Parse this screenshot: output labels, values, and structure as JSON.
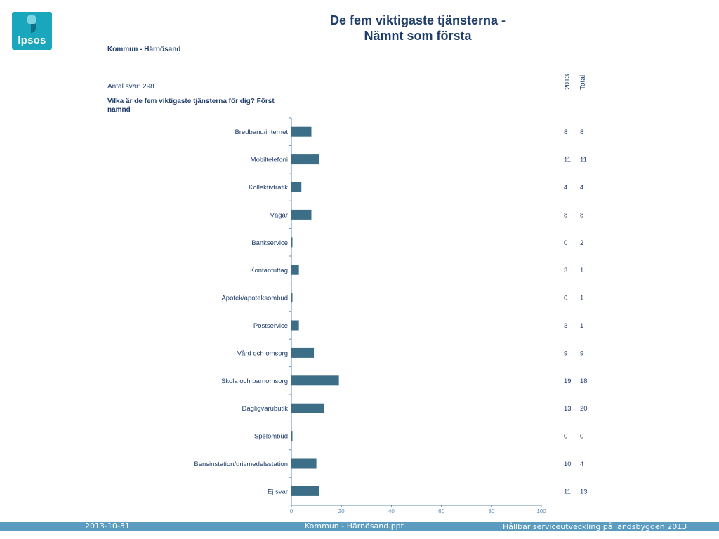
{
  "logo": {
    "text": "Ipsos"
  },
  "title": {
    "line1": "De fem viktigaste tjänsterna -",
    "line2": "Nämnt som första"
  },
  "subtitle": "Kommun - Härnösand",
  "antal_svar": "Antal svar: 298",
  "question": "Vilka är de fem viktigaste tjänsterna för dig? Först nämnd",
  "columns": [
    "2013",
    "Total"
  ],
  "colors": {
    "bar": "#3d6e87",
    "axis": "#5b8db5",
    "text": "#1f3d6b",
    "footer": "#5b9cc0"
  },
  "chart_data": {
    "type": "bar",
    "orientation": "horizontal",
    "categories": [
      "Bredband/internet",
      "Mobiltelefoni",
      "Kollektivtrafik",
      "Vägar",
      "Bankservice",
      "Kontantuttag",
      "Apotek/apoteksombud",
      "Postservice",
      "Vård och omsorg",
      "Skola och barnomsorg",
      "Dagligvarubutik",
      "Spelombud",
      "Bensinstation/drivmedelsstation",
      "Ej svar"
    ],
    "series": [
      {
        "name": "2013",
        "values": [
          8,
          11,
          4,
          8,
          0,
          3,
          0,
          3,
          9,
          19,
          13,
          0,
          10,
          11
        ]
      }
    ],
    "table_total": [
      8,
      11,
      4,
      8,
      2,
      1,
      1,
      1,
      9,
      18,
      20,
      0,
      4,
      13
    ],
    "xlim": [
      0,
      100
    ],
    "xticks": [
      0,
      20,
      40,
      60,
      80,
      100
    ]
  },
  "footer": {
    "date": "2013-10-31",
    "file": "Kommun - Härnösand.ppt",
    "project": "Hållbar serviceutveckling på landsbygden 2013"
  }
}
